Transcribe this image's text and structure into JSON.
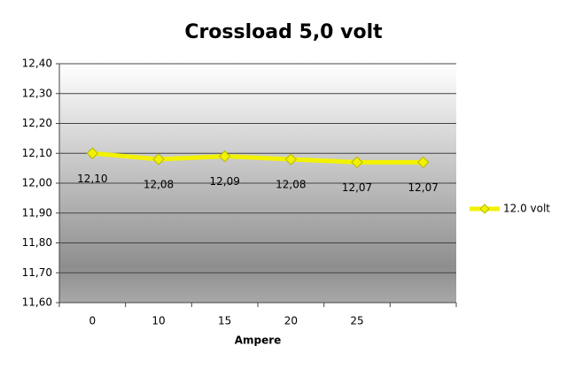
{
  "chart_data": {
    "type": "line",
    "title": "Crossload 5,0 volt",
    "x_label": "Ampere",
    "categories": [
      "0",
      "10",
      "15",
      "20",
      "25",
      null
    ],
    "series": [
      {
        "name": "12.0 volt",
        "color": "#f2f200",
        "values": [
          12.1,
          12.08,
          12.09,
          12.08,
          12.07,
          12.07
        ],
        "value_labels": [
          "12,10",
          "12,08",
          "12,09",
          "12,08",
          "12,07",
          "12,07"
        ]
      }
    ],
    "ylim": [
      11.6,
      12.4
    ],
    "yticks": [
      {
        "value": 11.6,
        "label": "11,60"
      },
      {
        "value": 11.7,
        "label": "11,70"
      },
      {
        "value": 11.8,
        "label": "11,80"
      },
      {
        "value": 11.9,
        "label": "11,90"
      },
      {
        "value": 12.0,
        "label": "12,00"
      },
      {
        "value": 12.1,
        "label": "12,10"
      },
      {
        "value": 12.2,
        "label": "12,20"
      },
      {
        "value": 12.3,
        "label": "12,30"
      },
      {
        "value": 12.4,
        "label": "12,40"
      }
    ],
    "grid": true,
    "legend": "right"
  }
}
